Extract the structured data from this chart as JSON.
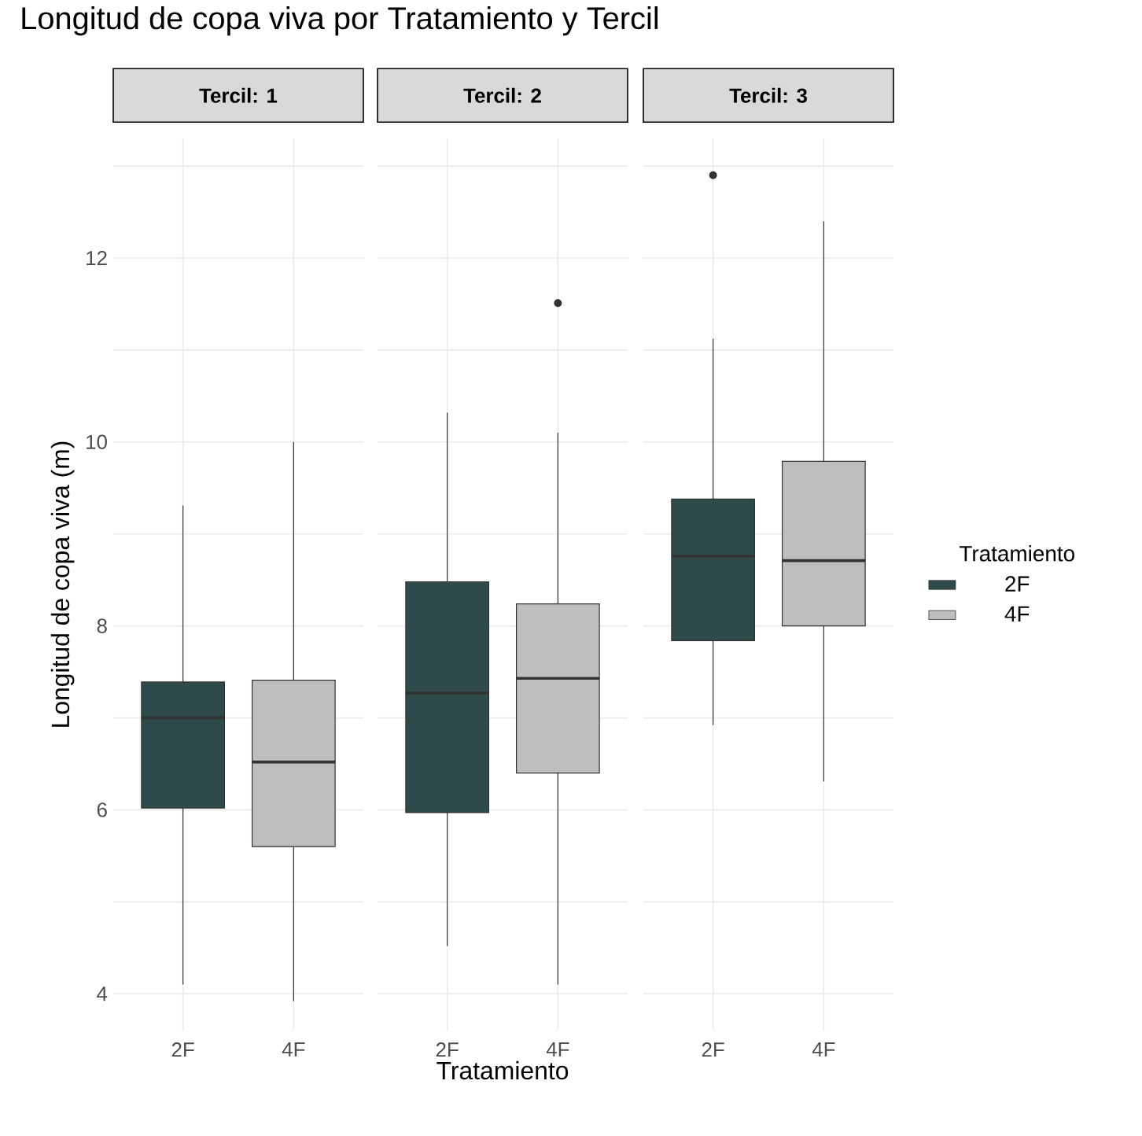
{
  "chart_data": [
    {
      "type": "box",
      "title": "Longitud de copa viva por Tratamiento y Tercil",
      "subtitle": "Tercil: 1",
      "ylabel": "Longitud de copa viva (m)",
      "categories": [
        "2F",
        "4F"
      ],
      "series": [
        {
          "color": "#2f4a4a",
          "boxes": [
            {
              "low": 4.1,
              "q1": 6.02,
              "median": 7.0,
              "q3": 7.39,
              "high": 9.31
            },
            null
          ]
        },
        {
          "color": "#bebebe",
          "boxes": [
            null,
            {
              "low": 3.92,
              "q1": 5.6,
              "median": 6.52,
              "q3": 7.41,
              "high": 10.0
            }
          ]
        }
      ],
      "ylim": [
        3.6,
        13.3
      ],
      "yticks": [
        4,
        {
          "value": 5,
          "label": null
        },
        6,
        {
          "value": 7,
          "label": null
        },
        8,
        {
          "value": 9,
          "label": null
        },
        10,
        {
          "value": 11,
          "label": null
        },
        12,
        {
          "value": 13,
          "label": null
        }
      ],
      "grid": true
    },
    {
      "type": "box",
      "subtitle": "Tercil: 2",
      "xlabel": "Tratamiento",
      "categories": [
        "2F",
        "4F"
      ],
      "series": [
        {
          "color": "#2f4a4a",
          "boxes": [
            {
              "low": 4.52,
              "q1": 5.97,
              "median": 7.27,
              "q3": 8.48,
              "high": 10.32
            },
            null
          ]
        },
        {
          "color": "#bebebe",
          "boxes": [
            null,
            {
              "low": 4.1,
              "q1": 6.4,
              "median": 7.43,
              "q3": 8.24,
              "high": 10.1,
              "outliers": [
                11.51
              ]
            }
          ]
        }
      ],
      "ylim": [
        3.6,
        13.3
      ],
      "yticks": [
        4,
        {
          "value": 5,
          "label": null
        },
        6,
        {
          "value": 7,
          "label": null
        },
        8,
        {
          "value": 9,
          "label": null
        },
        10,
        {
          "value": 11,
          "label": null
        },
        12,
        {
          "value": 13,
          "label": null
        }
      ],
      "grid": true,
      "tick_labels": "x"
    },
    {
      "type": "box",
      "subtitle": "Tercil: 3",
      "legend_title": "Tratamiento",
      "legend": "right",
      "categories": [
        "2F",
        "4F"
      ],
      "series": [
        {
          "name": "2F",
          "color": "#2f4a4a",
          "boxes": [
            {
              "low": 6.92,
              "q1": 7.84,
              "median": 8.76,
              "q3": 9.38,
              "high": 11.12,
              "outliers": [
                12.9
              ]
            },
            null
          ]
        },
        {
          "name": "4F",
          "color": "#bebebe",
          "boxes": [
            null,
            {
              "low": 6.31,
              "q1": 8.0,
              "median": 8.71,
              "q3": 9.79,
              "high": 12.4
            }
          ]
        }
      ],
      "ylim": [
        3.6,
        13.3
      ],
      "yticks": [
        4,
        {
          "value": 5,
          "label": null
        },
        6,
        {
          "value": 7,
          "label": null
        },
        8,
        {
          "value": 9,
          "label": null
        },
        10,
        {
          "value": 11,
          "label": null
        },
        12,
        {
          "value": 13,
          "label": null
        }
      ],
      "grid": true,
      "tick_labels": "x"
    }
  ]
}
